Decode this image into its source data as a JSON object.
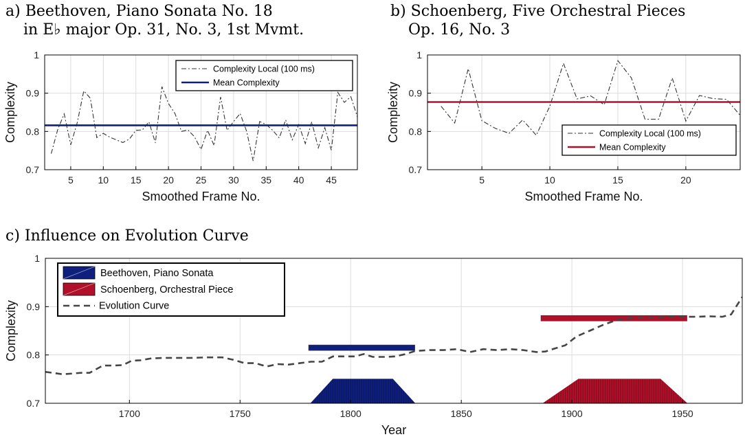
{
  "panels": [
    {
      "title_lines": [
        "a) Beethoven, Piano Sonata No. 18",
        "in E♭ major Op. 31, No. 3, 1st Mvmt."
      ],
      "chart_data": {
        "type": "line",
        "xlabel": "Smoothed Frame No.",
        "ylabel": "Complexity",
        "xlim": [
          1,
          49
        ],
        "ylim": [
          0.7,
          1
        ],
        "xticks": [
          5,
          10,
          15,
          20,
          25,
          30,
          35,
          40,
          45
        ],
        "yticks": [
          0.7,
          0.8,
          0.9,
          1
        ],
        "ytick_labels": [
          "0.7",
          "0.8",
          "0.9",
          "1"
        ],
        "grid": true,
        "legend_position": "top-right",
        "series": [
          {
            "name": "Complexity Local (100 ms)",
            "style": "dashdot",
            "color": "#333333",
            "x": [
              2,
              3,
              4,
              5,
              6,
              7,
              8,
              9,
              10,
              11,
              12,
              13,
              14,
              15,
              16,
              17,
              18,
              19,
              20,
              21,
              22,
              23,
              24,
              25,
              26,
              27,
              28,
              29,
              30,
              31,
              32,
              33,
              34,
              35,
              36,
              37,
              38,
              39,
              40,
              41,
              42,
              43,
              44,
              45,
              46,
              47,
              48,
              49
            ],
            "y": [
              0.742,
              0.805,
              0.846,
              0.765,
              0.823,
              0.906,
              0.887,
              0.784,
              0.795,
              0.785,
              0.778,
              0.771,
              0.78,
              0.803,
              0.804,
              0.825,
              0.77,
              0.917,
              0.873,
              0.847,
              0.8,
              0.804,
              0.786,
              0.753,
              0.803,
              0.763,
              0.89,
              0.803,
              0.826,
              0.847,
              0.8,
              0.723,
              0.826,
              0.818,
              0.803,
              0.783,
              0.83,
              0.778,
              0.818,
              0.768,
              0.825,
              0.757,
              0.81,
              0.751,
              0.902,
              0.876,
              0.891,
              0.838
            ]
          },
          {
            "name": "Mean Complexity",
            "style": "solid",
            "color": "#0f1f7d",
            "x": [
              1,
              49
            ],
            "y": [
              0.816,
              0.816
            ]
          }
        ]
      }
    },
    {
      "title_lines": [
        "b) Schoenberg, Five Orchestral Pieces",
        "Op. 16, No. 3"
      ],
      "chart_data": {
        "type": "line",
        "xlabel": "Smoothed Frame No.",
        "ylabel": "Complexity",
        "xlim": [
          1,
          24
        ],
        "ylim": [
          0.7,
          1
        ],
        "xticks": [
          5,
          10,
          15,
          20
        ],
        "yticks": [
          0.7,
          0.8,
          0.9,
          1
        ],
        "ytick_labels": [
          "0.7",
          "0.8",
          "0.9",
          "1"
        ],
        "grid": true,
        "legend_position": "bottom-right",
        "series": [
          {
            "name": "Complexity Local (100 ms)",
            "style": "dashdot",
            "color": "#333333",
            "x": [
              2,
              3,
              4,
              5,
              6,
              7,
              8,
              9,
              10,
              11,
              12,
              13,
              14,
              15,
              16,
              17,
              18,
              19,
              20,
              21,
              22,
              23,
              24
            ],
            "y": [
              0.866,
              0.822,
              0.964,
              0.828,
              0.808,
              0.795,
              0.83,
              0.79,
              0.866,
              0.978,
              0.885,
              0.893,
              0.87,
              0.985,
              0.94,
              0.832,
              0.832,
              0.94,
              0.827,
              0.894,
              0.886,
              0.884,
              0.842
            ]
          },
          {
            "name": "Mean Complexity",
            "style": "solid",
            "color": "#b0102a",
            "x": [
              1,
              24
            ],
            "y": [
              0.877,
              0.877
            ]
          }
        ]
      }
    },
    {
      "title_lines": [
        "c) Influence on Evolution Curve"
      ],
      "chart_data": {
        "type": "line",
        "xlabel": "Year",
        "ylabel": "Complexity",
        "xlim": [
          1662,
          1977
        ],
        "ylim": [
          0.7,
          1
        ],
        "xticks": [
          1700,
          1750,
          1800,
          1850,
          1900,
          1950
        ],
        "yticks": [
          0.7,
          0.8,
          0.9,
          1
        ],
        "ytick_labels": [
          "0.7",
          "0.8",
          "0.9",
          "1"
        ],
        "grid": true,
        "legend_position": "top-left",
        "series": [
          {
            "name": "Beethoven, Piano Sonata",
            "color": "#0f1f7d",
            "mean_bar": {
              "x": [
                1781,
                1829
              ],
              "y": 0.815
            },
            "trapezoid": {
              "x_start": 1782,
              "ramp_up_end": 1792,
              "plateau_end": 1819,
              "x_end": 1829,
              "y_base": 0.7,
              "y_top": 0.75
            }
          },
          {
            "name": "Schoenberg, Orchestral Piece",
            "color": "#b0102a",
            "mean_bar": {
              "x": [
                1886,
                1952
              ],
              "y": 0.876
            },
            "trapezoid": {
              "x_start": 1887,
              "ramp_up_end": 1903,
              "plateau_end": 1940,
              "x_end": 1952,
              "y_base": 0.7,
              "y_top": 0.75
            }
          },
          {
            "name": "Evolution Curve",
            "style": "dashed",
            "color": "#454545",
            "x": [
              1662,
              1670,
              1678,
              1682,
              1688,
              1693,
              1697,
              1701,
              1705,
              1710,
              1716,
              1722,
              1728,
              1735,
              1742,
              1747,
              1752,
              1757,
              1762,
              1767,
              1772,
              1777,
              1782,
              1787,
              1792,
              1797,
              1802,
              1806,
              1810,
              1816,
              1820,
              1825,
              1829,
              1835,
              1842,
              1848,
              1854,
              1860,
              1866,
              1872,
              1878,
              1884,
              1888,
              1892,
              1897,
              1902,
              1908,
              1914,
              1920,
              1926,
              1932,
              1938,
              1944,
              1950,
              1956,
              1962,
              1968,
              1972,
              1977
            ],
            "y": [
              0.765,
              0.76,
              0.763,
              0.763,
              0.778,
              0.778,
              0.779,
              0.788,
              0.789,
              0.793,
              0.794,
              0.794,
              0.794,
              0.795,
              0.795,
              0.79,
              0.783,
              0.783,
              0.776,
              0.781,
              0.78,
              0.783,
              0.786,
              0.786,
              0.797,
              0.797,
              0.797,
              0.802,
              0.796,
              0.796,
              0.797,
              0.802,
              0.808,
              0.81,
              0.81,
              0.812,
              0.806,
              0.812,
              0.81,
              0.812,
              0.81,
              0.806,
              0.807,
              0.813,
              0.82,
              0.838,
              0.85,
              0.862,
              0.872,
              0.876,
              0.877,
              0.877,
              0.879,
              0.879,
              0.879,
              0.88,
              0.879,
              0.884,
              0.92
            ]
          }
        ]
      }
    }
  ]
}
